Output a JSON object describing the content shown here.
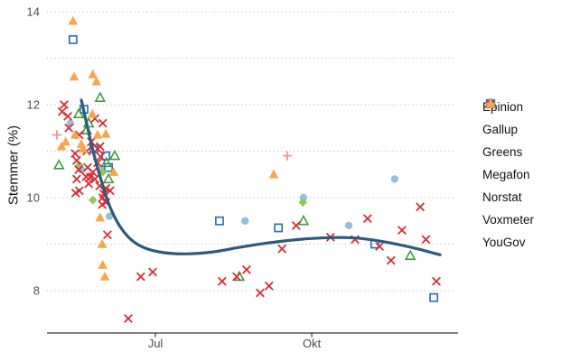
{
  "chart_data": {
    "type": "scatter",
    "title": "",
    "xlabel": "",
    "ylabel": "Stemmer (%)",
    "x_axis": {
      "ticks": [
        {
          "label": "Jul",
          "m": 7
        },
        {
          "label": "Okt",
          "m": 10
        }
      ],
      "unit": "month (decimal, 5=May 1, 7=Jul 1, 10=Okt 1)"
    },
    "y_axis": {
      "tick_labels": [
        14,
        12,
        10,
        8
      ],
      "gridlines": [
        8,
        9,
        10,
        11,
        12,
        13,
        14
      ],
      "range": [
        7.1,
        14.1
      ],
      "grid_style": "dotted"
    },
    "legend_position": "right",
    "series": [
      {
        "name": "Epinion",
        "shape": "circle-filled",
        "color": "#95c1dd",
        "points": [
          [
            5.37,
            11.6
          ],
          [
            5.58,
            10.6
          ],
          [
            5.96,
            10.6
          ],
          [
            6.12,
            9.6
          ],
          [
            8.72,
            9.5
          ],
          [
            9.84,
            10.0
          ],
          [
            10.71,
            9.4
          ],
          [
            11.59,
            10.4
          ]
        ]
      },
      {
        "name": "Gallup",
        "shape": "square-open",
        "color": "#2e73b8",
        "points": [
          [
            5.42,
            13.4
          ],
          [
            5.63,
            11.9
          ],
          [
            5.82,
            11.05
          ],
          [
            6.05,
            10.9
          ],
          [
            6.1,
            10.65
          ],
          [
            8.23,
            9.5
          ],
          [
            9.36,
            9.35
          ],
          [
            11.21,
            9.0
          ],
          [
            12.34,
            7.85
          ]
        ]
      },
      {
        "name": "Greens",
        "shape": "diamond-filled",
        "color": "#94c45c",
        "points": [
          [
            5.54,
            10.7
          ],
          [
            5.99,
            10.55
          ],
          [
            5.8,
            9.95
          ],
          [
            9.83,
            9.9
          ]
        ]
      },
      {
        "name": "Megafon",
        "shape": "triangle-open",
        "color": "#3f9b3f",
        "points": [
          [
            5.94,
            12.15
          ],
          [
            5.53,
            11.8
          ],
          [
            5.72,
            11.6
          ],
          [
            5.68,
            11.45
          ],
          [
            5.15,
            10.7
          ],
          [
            6.06,
            10.75
          ],
          [
            6.22,
            10.9
          ],
          [
            6.1,
            10.4
          ],
          [
            9.84,
            9.5
          ],
          [
            8.61,
            8.3
          ],
          [
            11.89,
            8.75
          ]
        ]
      },
      {
        "name": "Norstat",
        "shape": "plus",
        "color": "#f2938c",
        "points": [
          [
            5.11,
            11.35
          ],
          [
            9.53,
            10.9
          ]
        ]
      },
      {
        "name": "Voxmeter",
        "shape": "x",
        "color": "#da2d33",
        "points": [
          [
            5.25,
            12.0
          ],
          [
            5.21,
            11.85
          ],
          [
            5.32,
            11.75
          ],
          [
            5.84,
            11.7
          ],
          [
            5.99,
            11.6
          ],
          [
            5.34,
            11.5
          ],
          [
            5.54,
            11.35
          ],
          [
            5.77,
            11.2
          ],
          [
            5.94,
            11.1
          ],
          [
            5.89,
            11.05
          ],
          [
            5.68,
            11.0
          ],
          [
            5.46,
            10.95
          ],
          [
            5.95,
            10.88
          ],
          [
            5.49,
            10.8
          ],
          [
            5.89,
            10.75
          ],
          [
            5.7,
            10.65
          ],
          [
            5.53,
            10.6
          ],
          [
            5.8,
            10.55
          ],
          [
            5.67,
            10.45
          ],
          [
            5.75,
            10.44
          ],
          [
            5.49,
            10.4
          ],
          [
            5.84,
            10.4
          ],
          [
            5.72,
            10.3
          ],
          [
            5.93,
            10.25
          ],
          [
            6.13,
            10.15
          ],
          [
            5.54,
            10.15
          ],
          [
            6.05,
            10.2
          ],
          [
            5.47,
            10.1
          ],
          [
            6.01,
            10.08
          ],
          [
            5.99,
            10.0
          ],
          [
            6.05,
            9.9
          ],
          [
            5.98,
            9.85
          ],
          [
            6.08,
            9.2
          ],
          [
            6.48,
            7.4
          ],
          [
            6.72,
            8.3
          ],
          [
            6.95,
            8.4
          ],
          [
            8.28,
            8.2
          ],
          [
            8.56,
            8.3
          ],
          [
            8.75,
            8.45
          ],
          [
            9.01,
            7.95
          ],
          [
            9.18,
            8.1
          ],
          [
            9.43,
            8.9
          ],
          [
            9.7,
            9.4
          ],
          [
            10.36,
            9.15
          ],
          [
            10.83,
            9.1
          ],
          [
            11.07,
            9.55
          ],
          [
            11.3,
            8.95
          ],
          [
            11.52,
            8.65
          ],
          [
            11.73,
            9.3
          ],
          [
            12.08,
            9.8
          ],
          [
            12.19,
            9.1
          ],
          [
            12.39,
            8.2
          ]
        ]
      },
      {
        "name": "YouGov",
        "shape": "triangle-filled",
        "color": "#f7a64e",
        "points": [
          [
            5.42,
            13.8
          ],
          [
            5.44,
            12.6
          ],
          [
            5.8,
            12.65
          ],
          [
            5.87,
            12.5
          ],
          [
            5.79,
            11.8
          ],
          [
            5.46,
            11.35
          ],
          [
            5.28,
            11.2
          ],
          [
            5.2,
            11.1
          ],
          [
            5.58,
            11.15
          ],
          [
            5.89,
            11.35
          ],
          [
            6.05,
            11.37
          ],
          [
            5.61,
            11.05
          ],
          [
            6.2,
            10.55
          ],
          [
            5.94,
            9.57
          ],
          [
            5.98,
            9.0
          ],
          [
            5.99,
            8.55
          ],
          [
            6.03,
            8.3
          ],
          [
            9.27,
            10.5
          ]
        ]
      }
    ],
    "trend": {
      "color": "#2d5a7d",
      "points": [
        [
          5.58,
          12.1
        ],
        [
          5.7,
          11.5
        ],
        [
          5.84,
          10.85
        ],
        [
          5.98,
          10.3
        ],
        [
          6.13,
          9.8
        ],
        [
          6.31,
          9.4
        ],
        [
          6.53,
          9.1
        ],
        [
          6.79,
          8.92
        ],
        [
          7.14,
          8.82
        ],
        [
          7.57,
          8.79
        ],
        [
          8.09,
          8.83
        ],
        [
          8.61,
          8.93
        ],
        [
          9.13,
          9.02
        ],
        [
          9.74,
          9.1
        ],
        [
          10.35,
          9.14
        ],
        [
          10.87,
          9.13
        ],
        [
          11.39,
          9.05
        ],
        [
          11.91,
          8.93
        ],
        [
          12.46,
          8.77
        ]
      ]
    }
  }
}
